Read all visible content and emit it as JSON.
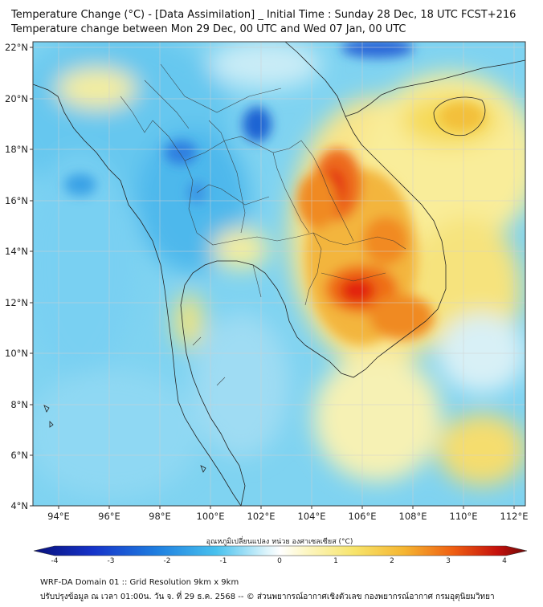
{
  "title_line1": "Temperature Change (°C) - [Data Assimilation] _ Initial Time : Sunday 28 Dec, 18 UTC FCST+216",
  "title_line2": "Temperature change between Mon 29 Dec, 00 UTC and Wed 07 Jan, 00 UTC",
  "map": {
    "lon_range": [
      93,
      112.5
    ],
    "lat_range": [
      4,
      22.2
    ],
    "lon_ticks": [
      "94°E",
      "96°E",
      "98°E",
      "100°E",
      "102°E",
      "104°E",
      "106°E",
      "108°E",
      "110°E",
      "112°E"
    ],
    "lat_ticks": [
      "22°N",
      "20°N",
      "18°N",
      "16°N",
      "14°N",
      "12°N",
      "10°N",
      "8°N",
      "6°N",
      "4°N"
    ],
    "field_description_colors": {
      "cold_strong": "#1f5fd6",
      "cold": "#49b8ea",
      "near_zero": "#eaf7fb",
      "warm": "#f7ec8a",
      "warm_strong": "#f4a21f",
      "hot": "#e81f10"
    }
  },
  "colorbar": {
    "label": "อุณหภูมิเปลี่ยนแปลง หน่วย องศาเซลเซียส (°C)",
    "ticks": [
      "-4",
      "-3",
      "-2",
      "-1",
      "0",
      "1",
      "2",
      "3",
      "4"
    ],
    "min": -4,
    "max": 4
  },
  "footer_line1": "WRF-DA Domain 01 :: Grid Resolution 9km x 9km",
  "footer_line2": "ปรับปรุงข้อมูล ณ เวลา 01:00น. วัน จ. ที่ 29 ธ.ค. 2568 -- © ส่วนพยากรณ์อากาศเชิงตัวเลข กองพยากรณ์อากาศ กรมอุตุนิยมวิทยา"
}
